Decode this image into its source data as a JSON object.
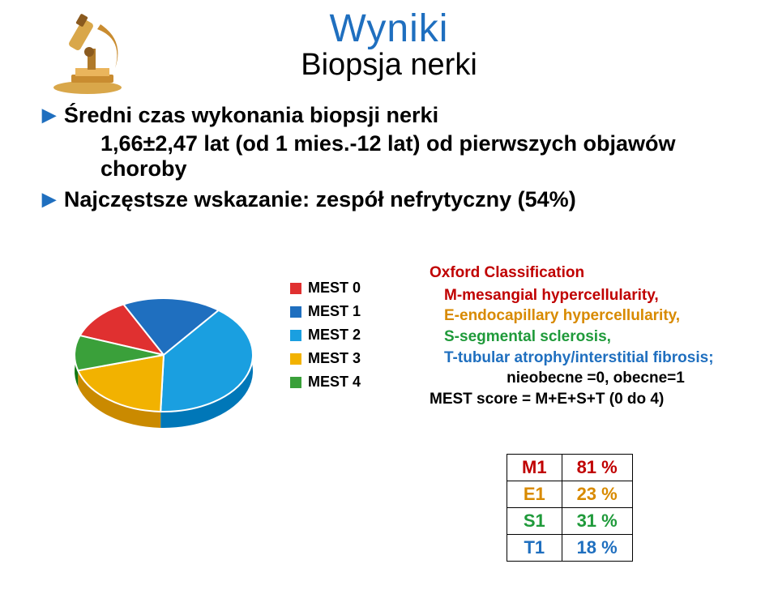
{
  "title": {
    "line1": "Wyniki",
    "line2": "Biopsja nerki",
    "line1_color": "#1f6fbf",
    "line2_color": "#000000"
  },
  "bullets": {
    "b1a": "Średni czas wykonania biopsji nerki",
    "b1b": "1,66±2,47 lat (od 1 mies.-12 lat) od pierwszych objawów",
    "b1c": "choroby",
    "b2": "Najczęstsze wskazanie: zespół nefrytyczny (54%)"
  },
  "pie": {
    "type": "pie-3d",
    "slices": [
      {
        "label": "MEST 0",
        "value": 12,
        "color": "#e03030"
      },
      {
        "label": "MEST 1",
        "value": 18,
        "color": "#1f6fbf"
      },
      {
        "label": "MEST 2",
        "value": 40,
        "color": "#1a9fe0"
      },
      {
        "label": "MEST 3",
        "value": 20,
        "color": "#f2b200"
      },
      {
        "label": "MEST 4",
        "value": 10,
        "color": "#3aa03a"
      }
    ],
    "background_color": "#ffffff",
    "legend_position": "right",
    "depth": 20
  },
  "oxford": {
    "title": "Oxford Classification",
    "m": "M-mesangial hypercellularity,",
    "e": "E-endocapillary hypercellularity,",
    "s": "S-segmental sclerosis,",
    "t": "T-tubular atrophy/interstitial fibrosis;",
    "absent": "nieobecne =0, obecne=1",
    "score": "MEST score  = M+E+S+T (0 do 4)",
    "colors": {
      "m": "#c00000",
      "e": "#d88a00",
      "s": "#1f9a3a",
      "t": "#1f6fbf"
    }
  },
  "table": {
    "rows": [
      {
        "label": "M1",
        "value": "81 %",
        "color": "#c00000"
      },
      {
        "label": "E1",
        "value": "23 %",
        "color": "#d88a00"
      },
      {
        "label": "S1",
        "value": "31 %",
        "color": "#1f9a3a"
      },
      {
        "label": "T1",
        "value": "18 %",
        "color": "#1f6fbf"
      }
    ]
  }
}
